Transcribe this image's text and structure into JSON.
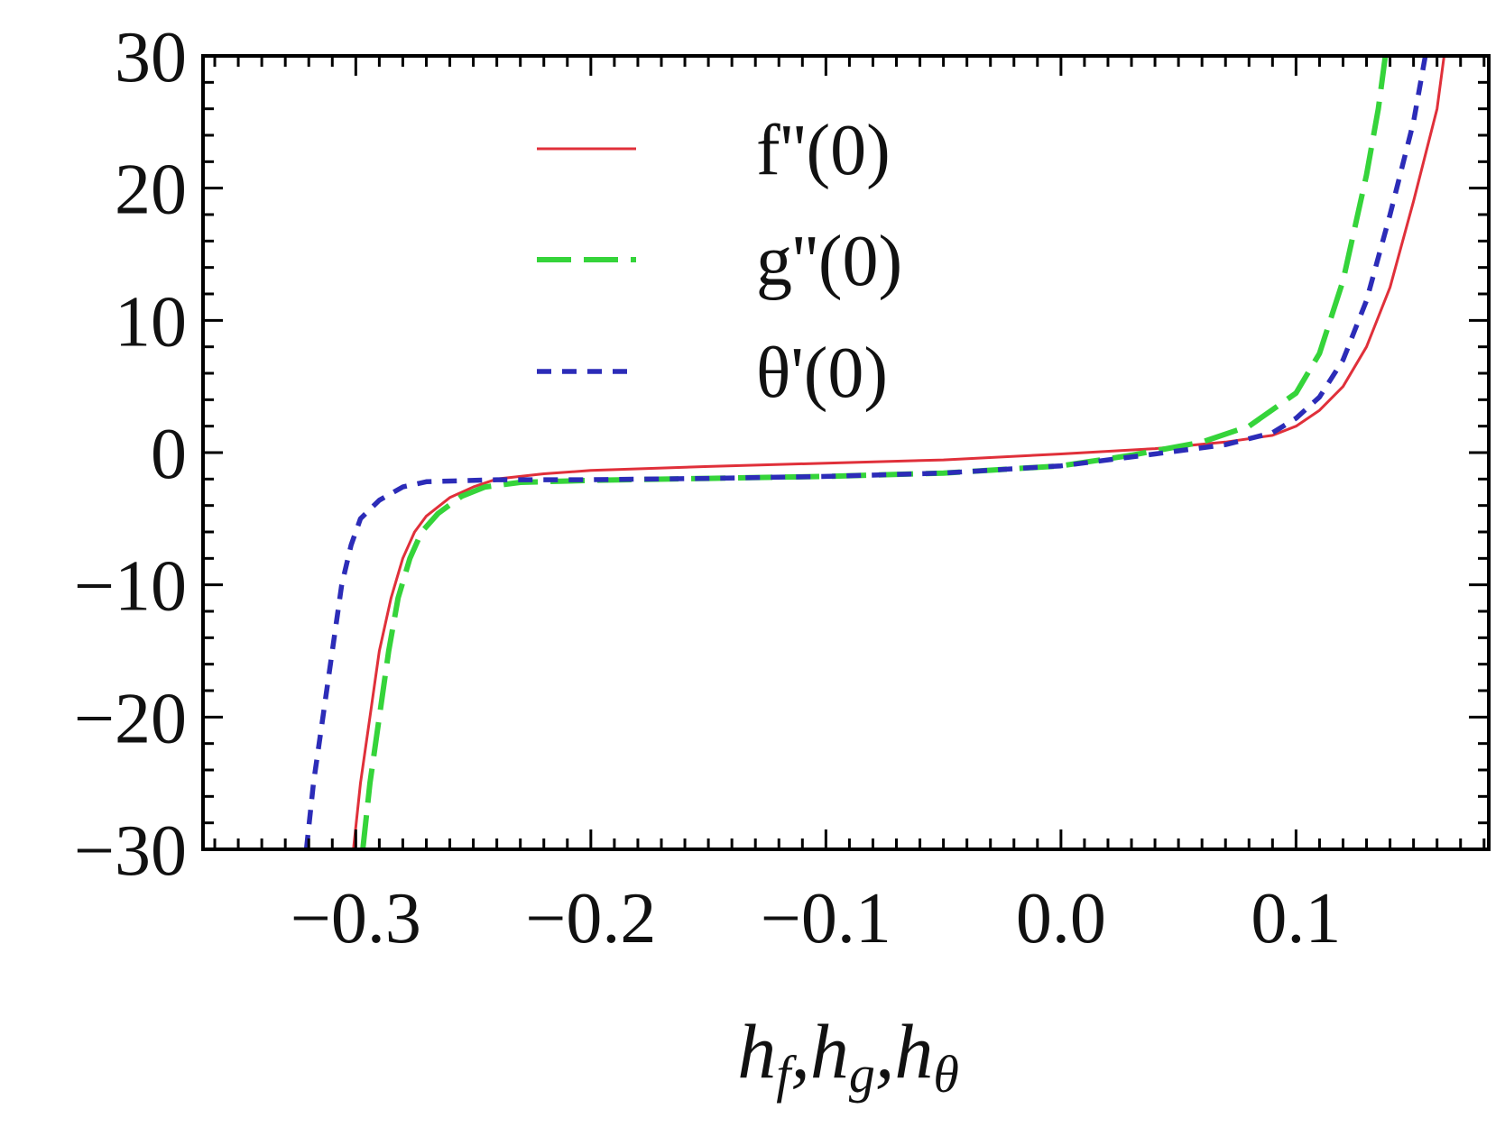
{
  "chart_data": {
    "type": "line",
    "title": "",
    "xlabel_parts": [
      {
        "base": "h",
        "sub": "f",
        "sep": ","
      },
      {
        "base": "h",
        "sub": "g",
        "sep": ","
      },
      {
        "base": "h",
        "sub": "θ",
        "sep": ""
      }
    ],
    "xlim": [
      -0.365,
      0.182
    ],
    "ylim": [
      -30,
      30
    ],
    "xticks": [
      {
        "value": -0.3,
        "label": "−0.3"
      },
      {
        "value": -0.2,
        "label": "−0.2"
      },
      {
        "value": -0.1,
        "label": "−0.1"
      },
      {
        "value": 0.0,
        "label": "0.0"
      },
      {
        "value": 0.1,
        "label": "0.1"
      }
    ],
    "yticks": [
      {
        "value": 30,
        "label": "30"
      },
      {
        "value": 20,
        "label": "20"
      },
      {
        "value": 10,
        "label": "10"
      },
      {
        "value": 0,
        "label": "0"
      },
      {
        "value": -10,
        "label": "−10"
      },
      {
        "value": -20,
        "label": "−20"
      },
      {
        "value": -30,
        "label": "−30"
      }
    ],
    "grid": false,
    "legend_position": "top-center",
    "series": [
      {
        "name": "f''(0)",
        "color": "#e0303a",
        "dash": "solid",
        "points": [
          [
            -0.301,
            -30
          ],
          [
            -0.298,
            -25
          ],
          [
            -0.294,
            -20
          ],
          [
            -0.29,
            -15
          ],
          [
            -0.285,
            -11
          ],
          [
            -0.28,
            -8
          ],
          [
            -0.275,
            -6
          ],
          [
            -0.27,
            -4.8
          ],
          [
            -0.26,
            -3.4
          ],
          [
            -0.25,
            -2.6
          ],
          [
            -0.24,
            -2.0
          ],
          [
            -0.22,
            -1.6
          ],
          [
            -0.2,
            -1.35
          ],
          [
            -0.15,
            -1.05
          ],
          [
            -0.1,
            -0.8
          ],
          [
            -0.05,
            -0.55
          ],
          [
            0.0,
            -0.1
          ],
          [
            0.04,
            0.3
          ],
          [
            0.07,
            0.8
          ],
          [
            0.09,
            1.3
          ],
          [
            0.1,
            2.0
          ],
          [
            0.11,
            3.2
          ],
          [
            0.12,
            5.0
          ],
          [
            0.13,
            8.0
          ],
          [
            0.14,
            12.5
          ],
          [
            0.15,
            19.0
          ],
          [
            0.16,
            26.0
          ],
          [
            0.163,
            30
          ]
        ]
      },
      {
        "name": "g''(0)",
        "color": "#35d43a",
        "dash": "long-dash",
        "points": [
          [
            -0.297,
            -30
          ],
          [
            -0.294,
            -25
          ],
          [
            -0.29,
            -20
          ],
          [
            -0.286,
            -15
          ],
          [
            -0.282,
            -11
          ],
          [
            -0.277,
            -8
          ],
          [
            -0.272,
            -6
          ],
          [
            -0.265,
            -4.6
          ],
          [
            -0.255,
            -3.3
          ],
          [
            -0.245,
            -2.6
          ],
          [
            -0.23,
            -2.25
          ],
          [
            -0.2,
            -2.1
          ],
          [
            -0.15,
            -1.95
          ],
          [
            -0.1,
            -1.8
          ],
          [
            -0.05,
            -1.55
          ],
          [
            0.0,
            -1.0
          ],
          [
            0.03,
            -0.2
          ],
          [
            0.06,
            0.8
          ],
          [
            0.08,
            2.0
          ],
          [
            0.1,
            4.5
          ],
          [
            0.11,
            7.5
          ],
          [
            0.12,
            13.0
          ],
          [
            0.13,
            21.0
          ],
          [
            0.135,
            26.0
          ],
          [
            0.138,
            30
          ]
        ]
      },
      {
        "name": "θ'(0)",
        "color": "#2c2cb8",
        "dash": "short-dash",
        "points": [
          [
            -0.321,
            -30
          ],
          [
            -0.318,
            -25
          ],
          [
            -0.314,
            -20
          ],
          [
            -0.31,
            -15
          ],
          [
            -0.306,
            -10
          ],
          [
            -0.302,
            -7
          ],
          [
            -0.298,
            -5
          ],
          [
            -0.29,
            -3.6
          ],
          [
            -0.28,
            -2.6
          ],
          [
            -0.27,
            -2.2
          ],
          [
            -0.24,
            -2.05
          ],
          [
            -0.2,
            -2.05
          ],
          [
            -0.15,
            -1.95
          ],
          [
            -0.1,
            -1.8
          ],
          [
            -0.05,
            -1.55
          ],
          [
            0.0,
            -1.0
          ],
          [
            0.04,
            -0.1
          ],
          [
            0.07,
            0.6
          ],
          [
            0.09,
            1.5
          ],
          [
            0.1,
            2.6
          ],
          [
            0.11,
            4.2
          ],
          [
            0.12,
            7.0
          ],
          [
            0.13,
            11.5
          ],
          [
            0.14,
            18.0
          ],
          [
            0.15,
            25.0
          ],
          [
            0.155,
            30
          ]
        ]
      }
    ]
  }
}
